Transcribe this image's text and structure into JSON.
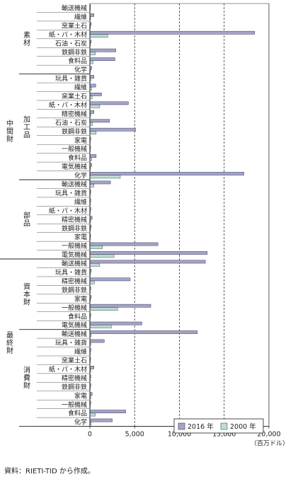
{
  "chart_data": {
    "type": "bar",
    "orientation": "horizontal",
    "xlim": [
      0,
      20000
    ],
    "xticks": [
      "0",
      "5,000",
      "10,000",
      "15,000",
      "20,000"
    ],
    "xticks_values": [
      0,
      5000,
      10000,
      15000,
      20000
    ],
    "unit_label": "（百万ドル）",
    "grid": "vertical dashed",
    "legend_position": "bottom-right",
    "series": [
      {
        "name": "2016 年",
        "color": "#a4a4c8"
      },
      {
        "name": "2000 年",
        "color": "#bcdcd4"
      }
    ],
    "groups": [
      {
        "level1": "中間財",
        "level2": "素材"
      },
      {
        "level1": "中間財",
        "level2": "加工品"
      },
      {
        "level1": "中間財",
        "level2": "部品"
      },
      {
        "level1": "最終財",
        "level2": "資本財"
      },
      {
        "level1": "最終財",
        "level2": "消費財"
      }
    ],
    "rows": [
      {
        "group": 0,
        "label": "輸送機械",
        "v2016": 30,
        "v2000": 20
      },
      {
        "group": 0,
        "label": "繊維",
        "v2016": 450,
        "v2000": 80
      },
      {
        "group": 0,
        "label": "窯業土石",
        "v2016": 150,
        "v2000": 60
      },
      {
        "group": 0,
        "label": "紙・パ・木材",
        "v2016": 18400,
        "v2000": 2000
      },
      {
        "group": 0,
        "label": "石油・石炭",
        "v2016": 150,
        "v2000": 60
      },
      {
        "group": 0,
        "label": "鉄鋼非鉄",
        "v2016": 2900,
        "v2000": 600
      },
      {
        "group": 0,
        "label": "食料品",
        "v2016": 2800,
        "v2000": 350
      },
      {
        "group": 0,
        "label": "化学",
        "v2016": 200,
        "v2000": 80
      },
      {
        "group": 1,
        "label": "玩具・雑貨",
        "v2016": 450,
        "v2000": 100
      },
      {
        "group": 1,
        "label": "繊維",
        "v2016": 650,
        "v2000": 200
      },
      {
        "group": 1,
        "label": "窯業土石",
        "v2016": 1300,
        "v2000": 250
      },
      {
        "group": 1,
        "label": "紙・パ・木材",
        "v2016": 4300,
        "v2000": 1100
      },
      {
        "group": 1,
        "label": "精密機械",
        "v2016": 450,
        "v2000": 100
      },
      {
        "group": 1,
        "label": "石油・石炭",
        "v2016": 2200,
        "v2000": 300
      },
      {
        "group": 1,
        "label": "鉄鋼非鉄",
        "v2016": 5100,
        "v2000": 700
      },
      {
        "group": 1,
        "label": "家電",
        "v2016": 100,
        "v2000": 40
      },
      {
        "group": 1,
        "label": "一般機械",
        "v2016": 80,
        "v2000": 30
      },
      {
        "group": 1,
        "label": "食料品",
        "v2016": 700,
        "v2000": 200
      },
      {
        "group": 1,
        "label": "電気機械",
        "v2016": 200,
        "v2000": 80
      },
      {
        "group": 1,
        "label": "化学",
        "v2016": 17200,
        "v2000": 3400
      },
      {
        "group": 2,
        "label": "輸送機械",
        "v2016": 2300,
        "v2000": 450
      },
      {
        "group": 2,
        "label": "玩具・雑貨",
        "v2016": 100,
        "v2000": 40
      },
      {
        "group": 2,
        "label": "繊維",
        "v2016": 100,
        "v2000": 40
      },
      {
        "group": 2,
        "label": "紙・パ・木材",
        "v2016": 100,
        "v2000": 40
      },
      {
        "group": 2,
        "label": "精密機械",
        "v2016": 250,
        "v2000": 100
      },
      {
        "group": 2,
        "label": "鉄鋼非鉄",
        "v2016": 150,
        "v2000": 60
      },
      {
        "group": 2,
        "label": "家電",
        "v2016": 80,
        "v2000": 30
      },
      {
        "group": 2,
        "label": "一般機械",
        "v2016": 7600,
        "v2000": 1400
      },
      {
        "group": 2,
        "label": "電気機械",
        "v2016": 13100,
        "v2000": 2700
      },
      {
        "group": 3,
        "label": "輸送機械",
        "v2016": 12900,
        "v2000": 1100
      },
      {
        "group": 3,
        "label": "玩具・雑貨",
        "v2016": 150,
        "v2000": 60
      },
      {
        "group": 3,
        "label": "精密機械",
        "v2016": 4500,
        "v2000": 500
      },
      {
        "group": 3,
        "label": "鉄鋼非鉄",
        "v2016": 100,
        "v2000": 40
      },
      {
        "group": 3,
        "label": "家電",
        "v2016": 150,
        "v2000": 60
      },
      {
        "group": 3,
        "label": "一般機械",
        "v2016": 6800,
        "v2000": 3100
      },
      {
        "group": 3,
        "label": "食料品",
        "v2016": 100,
        "v2000": 40
      },
      {
        "group": 3,
        "label": "電気機械",
        "v2016": 5800,
        "v2000": 2400
      },
      {
        "group": 4,
        "label": "輸送機械",
        "v2016": 12000,
        "v2000": 150
      },
      {
        "group": 4,
        "label": "玩具・雑貨",
        "v2016": 1600,
        "v2000": 100
      },
      {
        "group": 4,
        "label": "繊維",
        "v2016": 100,
        "v2000": 40
      },
      {
        "group": 4,
        "label": "窯業土石",
        "v2016": 80,
        "v2000": 30
      },
      {
        "group": 4,
        "label": "紙・パ・木材",
        "v2016": 450,
        "v2000": 100
      },
      {
        "group": 4,
        "label": "精密機械",
        "v2016": 100,
        "v2000": 40
      },
      {
        "group": 4,
        "label": "鉄鋼非鉄",
        "v2016": 100,
        "v2000": 40
      },
      {
        "group": 4,
        "label": "家電",
        "v2016": 250,
        "v2000": 100
      },
      {
        "group": 4,
        "label": "一般機械",
        "v2016": 100,
        "v2000": 40
      },
      {
        "group": 4,
        "label": "食料品",
        "v2016": 4000,
        "v2000": 600
      },
      {
        "group": 4,
        "label": "化学",
        "v2016": 2500,
        "v2000": 150
      }
    ]
  },
  "source_note": "資料：RIETI-TID から作成。"
}
